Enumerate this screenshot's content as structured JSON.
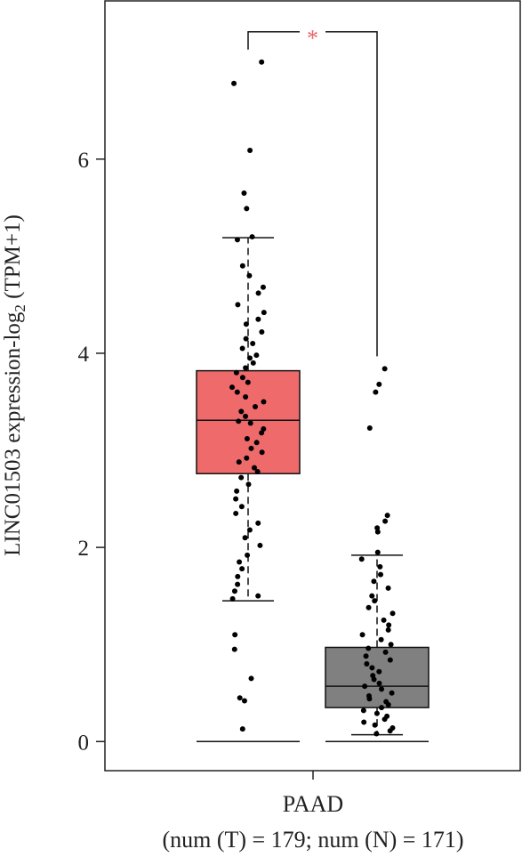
{
  "chart_data": {
    "type": "box",
    "y_label": {
      "prefix": "LINC01503 expression-log",
      "sub": "2",
      "suffix": " (TPM+1)"
    },
    "categories": [
      "PAAD"
    ],
    "x_sublabel": "(num (T) = 179; num (N) = 171)",
    "annotation": "*",
    "annotation_color": "#e8676a",
    "ylim": [
      -0.3,
      7.63
    ],
    "yticks": [
      0,
      2,
      4,
      6
    ],
    "point_color": "#000000",
    "series": [
      {
        "color": "#ef6a6b",
        "min": 0,
        "whisker_low": 1.45,
        "q1": 2.76,
        "median": 3.31,
        "q3": 3.82,
        "whisker_high": 5.19,
        "points": [
          7.0,
          6.78,
          6.09,
          5.65,
          5.49,
          5.2,
          5.17,
          4.9,
          4.8,
          4.68,
          4.62,
          4.5,
          4.42,
          4.35,
          4.3,
          4.22,
          4.15,
          4.1,
          4.05,
          3.98,
          3.95,
          3.9,
          3.85,
          3.8,
          3.75,
          3.7,
          3.65,
          3.6,
          3.55,
          3.5,
          3.45,
          3.4,
          3.35,
          3.3,
          3.28,
          3.22,
          3.18,
          3.12,
          3.08,
          3.02,
          2.98,
          2.92,
          2.88,
          2.82,
          2.78,
          2.72,
          2.65,
          2.58,
          2.5,
          2.42,
          2.35,
          2.25,
          2.18,
          2.1,
          2.02,
          1.92,
          1.85,
          1.78,
          1.7,
          1.62,
          1.55,
          1.5,
          1.47,
          1.1,
          0.95,
          0.65,
          0.45,
          0.42,
          0.13
        ]
      },
      {
        "color": "#808080",
        "min": 0,
        "whisker_low": 0.07,
        "q1": 0.35,
        "median": 0.57,
        "q3": 0.97,
        "whisker_high": 1.92,
        "points": [
          3.84,
          3.68,
          3.6,
          3.23,
          2.33,
          2.27,
          2.2,
          2.16,
          1.95,
          1.88,
          1.8,
          1.72,
          1.65,
          1.58,
          1.5,
          1.45,
          1.38,
          1.32,
          1.25,
          1.2,
          1.15,
          1.1,
          1.05,
          1.0,
          0.96,
          0.92,
          0.88,
          0.84,
          0.8,
          0.76,
          0.72,
          0.68,
          0.64,
          0.6,
          0.57,
          0.54,
          0.5,
          0.47,
          0.44,
          0.41,
          0.38,
          0.35,
          0.32,
          0.29,
          0.26,
          0.23,
          0.2,
          0.17,
          0.14,
          0.11,
          0.08
        ]
      }
    ]
  }
}
